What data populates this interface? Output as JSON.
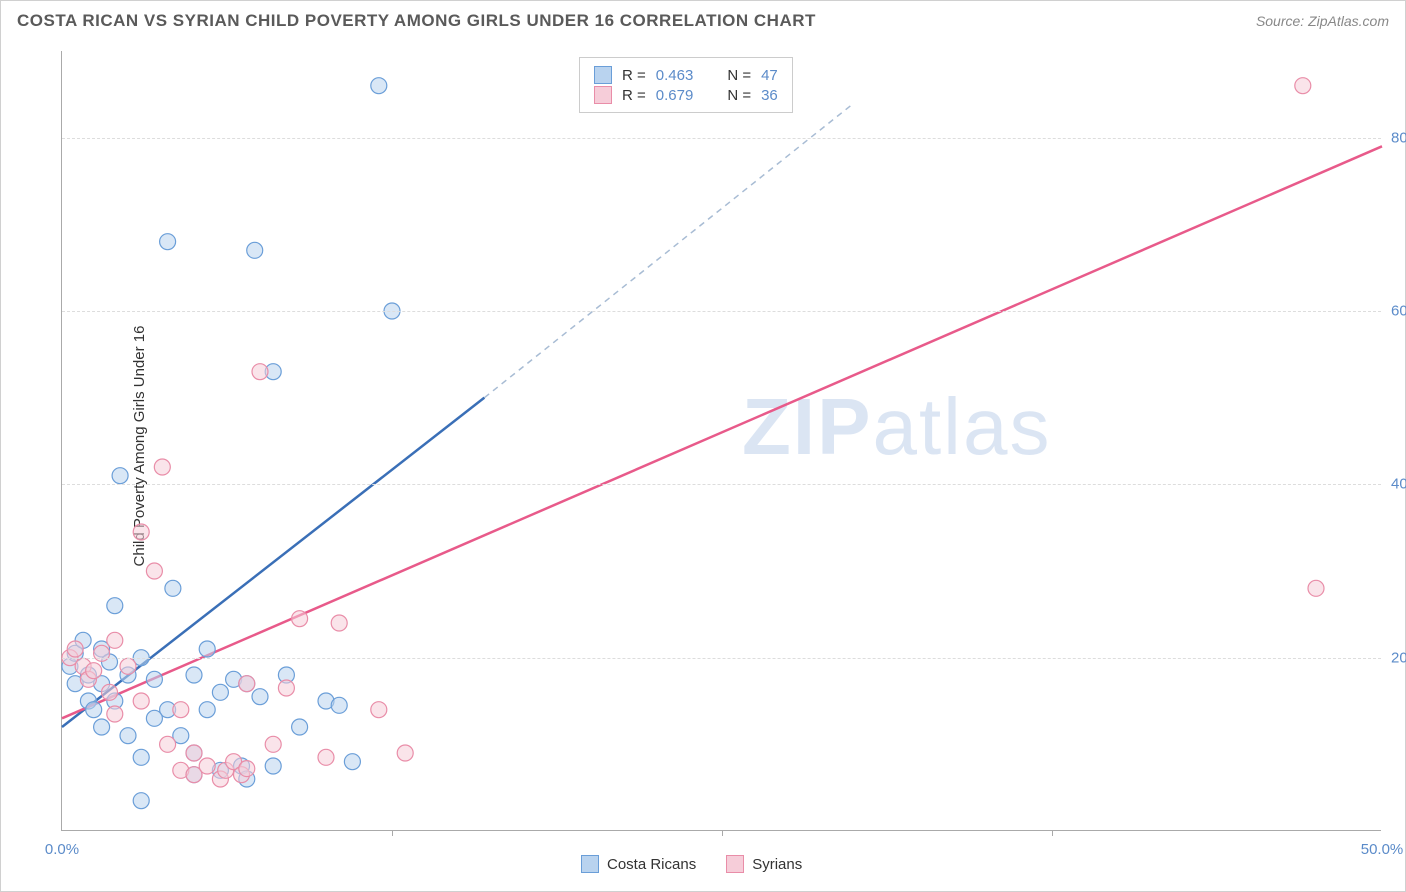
{
  "title": "COSTA RICAN VS SYRIAN CHILD POVERTY AMONG GIRLS UNDER 16 CORRELATION CHART",
  "source": "Source: ZipAtlas.com",
  "y_axis_label": "Child Poverty Among Girls Under 16",
  "watermark": {
    "bold": "ZIP",
    "light": "atlas"
  },
  "chart": {
    "type": "scatter",
    "xlim": [
      0,
      50
    ],
    "ylim": [
      0,
      90
    ],
    "x_ticks": [
      0,
      50
    ],
    "x_tick_labels": [
      "0.0%",
      "50.0%"
    ],
    "x_tick_marks_only": [
      12.5,
      25,
      37.5
    ],
    "y_ticks": [
      20,
      40,
      60,
      80
    ],
    "y_tick_labels": [
      "20.0%",
      "40.0%",
      "60.0%",
      "80.0%"
    ],
    "grid_color": "#dddddd",
    "background_color": "#ffffff",
    "point_radius": 8,
    "point_opacity": 0.55,
    "series": [
      {
        "name": "Costa Ricans",
        "color_fill": "#b9d3ef",
        "color_stroke": "#6a9ed8",
        "line_color": "#3a6fb7",
        "line_dash_color": "#a8bcd4",
        "R": "0.463",
        "N": "47",
        "regression": {
          "x1": 0,
          "y1": 12,
          "x2": 16,
          "y2": 50,
          "x2_dash": 30,
          "y2_dash": 84
        },
        "points": [
          [
            0.3,
            19
          ],
          [
            0.5,
            20.5
          ],
          [
            0.5,
            17
          ],
          [
            0.8,
            22
          ],
          [
            1,
            18
          ],
          [
            1,
            15
          ],
          [
            1.2,
            14
          ],
          [
            1.5,
            21
          ],
          [
            1.5,
            17
          ],
          [
            1.8,
            19.5
          ],
          [
            2,
            26
          ],
          [
            2,
            15
          ],
          [
            2.2,
            41
          ],
          [
            2.5,
            18
          ],
          [
            3,
            20
          ],
          [
            3,
            8.5
          ],
          [
            3,
            3.5
          ],
          [
            3.5,
            17.5
          ],
          [
            4,
            68
          ],
          [
            4,
            14
          ],
          [
            4.2,
            28
          ],
          [
            4.5,
            11
          ],
          [
            5,
            18
          ],
          [
            5,
            9
          ],
          [
            5.5,
            21
          ],
          [
            5.5,
            14
          ],
          [
            6,
            16
          ],
          [
            6.5,
            17.5
          ],
          [
            6.8,
            7.5
          ],
          [
            7,
            17
          ],
          [
            7.3,
            67
          ],
          [
            7.5,
            15.5
          ],
          [
            8,
            53
          ],
          [
            8.5,
            18
          ],
          [
            9,
            12
          ],
          [
            10,
            15
          ],
          [
            10.5,
            14.5
          ],
          [
            11,
            8
          ],
          [
            12,
            86
          ],
          [
            12.5,
            60
          ],
          [
            5,
            6.5
          ],
          [
            6,
            7
          ],
          [
            7,
            6
          ],
          [
            8,
            7.5
          ],
          [
            1.5,
            12
          ],
          [
            2.5,
            11
          ],
          [
            3.5,
            13
          ]
        ]
      },
      {
        "name": "Syrians",
        "color_fill": "#f6cdd9",
        "color_stroke": "#e98da8",
        "line_color": "#e85a8a",
        "R": "0.679",
        "N": "36",
        "regression": {
          "x1": 0,
          "y1": 13,
          "x2": 50,
          "y2": 79
        },
        "points": [
          [
            0.3,
            20
          ],
          [
            0.5,
            21
          ],
          [
            0.8,
            19
          ],
          [
            1,
            17.5
          ],
          [
            1.2,
            18.5
          ],
          [
            1.5,
            20.5
          ],
          [
            1.8,
            16
          ],
          [
            2,
            22
          ],
          [
            2,
            13.5
          ],
          [
            2.5,
            19
          ],
          [
            3,
            34.5
          ],
          [
            3,
            15
          ],
          [
            3.5,
            30
          ],
          [
            3.8,
            42
          ],
          [
            4,
            10
          ],
          [
            4.5,
            14
          ],
          [
            4.5,
            7
          ],
          [
            5,
            9
          ],
          [
            5,
            6.5
          ],
          [
            5.5,
            7.5
          ],
          [
            6,
            6
          ],
          [
            6.2,
            7
          ],
          [
            6.5,
            8
          ],
          [
            6.8,
            6.5
          ],
          [
            7,
            17
          ],
          [
            7,
            7.2
          ],
          [
            7.5,
            53
          ],
          [
            8,
            10
          ],
          [
            8.5,
            16.5
          ],
          [
            9,
            24.5
          ],
          [
            10,
            8.5
          ],
          [
            10.5,
            24
          ],
          [
            12,
            14
          ],
          [
            13,
            9
          ],
          [
            47,
            86
          ],
          [
            47.5,
            28
          ]
        ]
      }
    ]
  },
  "legend_top": {
    "R_label": "R",
    "N_label": "N",
    "eq": "="
  },
  "legend_bottom": {
    "items": [
      "Costa Ricans",
      "Syrians"
    ]
  }
}
